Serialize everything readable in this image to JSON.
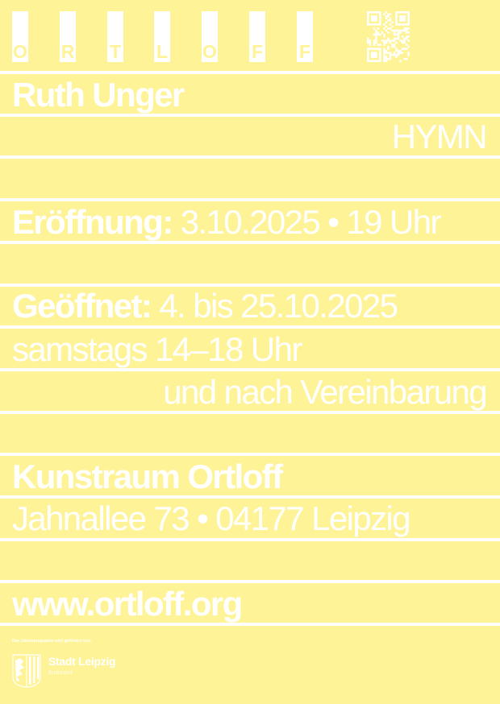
{
  "colors": {
    "background": "#FFF397",
    "foreground": "#FFFFFF"
  },
  "logo_letters": [
    "O",
    "R",
    "T",
    "L",
    "O",
    "F",
    "F"
  ],
  "qr_code": "qr-code-icon",
  "artist": "Ruth Unger",
  "title": "HYMN",
  "opening": {
    "label": "Eröffnung:",
    "value": "3.10.2025 • 19 Uhr"
  },
  "open": {
    "label": "Geöffnet:",
    "value": "4. bis 25.10.2025",
    "hours": "samstags 14–18 Uhr",
    "note": "und nach Vereinbarung"
  },
  "venue": {
    "name": "Kunstraum Ortloff",
    "address": "Jahnallee 73 • 04177 Leipzig"
  },
  "website": "www.ortloff.org",
  "footer": {
    "funding_text": "Das Jahresprogramm wird gefördert von:",
    "sponsor": "Stadt Leipzig",
    "sponsor_dept": "Kulturamt",
    "crest": "leipzig-coat-of-arms-icon"
  }
}
